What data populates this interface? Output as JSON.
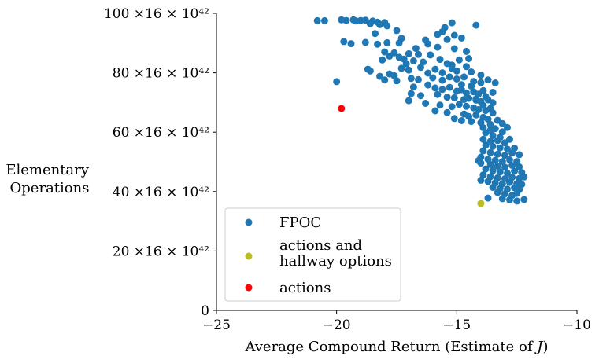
{
  "chart_data": {
    "type": "scatter",
    "xlabel": "Average Compound Return (Estimate of J)",
    "ylabel_lines": [
      "Elementary",
      "Operations"
    ],
    "xlim": [
      -25,
      -10
    ],
    "ylim": [
      0,
      100
    ],
    "x_ticks": [
      -25,
      -20,
      -15,
      -10
    ],
    "x_tick_labels": [
      "−25",
      "−20",
      "−15",
      "−10"
    ],
    "y_ticks": [
      0,
      20,
      40,
      60,
      80,
      100
    ],
    "y_tick_labels": [
      "0",
      "20 ×16 × 10⁴²",
      "40 ×16 × 10⁴²",
      "60 ×16 × 10⁴²",
      "80 ×16 × 10⁴²",
      "100 ×16 × 10⁴²"
    ],
    "grid": false,
    "legend_position": "lower-left",
    "series": [
      {
        "name": "FPOC",
        "color": "#1f77b4",
        "points": [
          [
            -20.8,
            97.5
          ],
          [
            -20.5,
            97.5
          ],
          [
            -19.8,
            97.8
          ],
          [
            -19.6,
            97.6
          ],
          [
            -19.3,
            97.8
          ],
          [
            -19.0,
            97.6
          ],
          [
            -18.8,
            97.7
          ],
          [
            -18.5,
            97.4
          ],
          [
            -18.3,
            97.0
          ],
          [
            -18.0,
            96.9
          ],
          [
            -18.6,
            96.5
          ],
          [
            -18.2,
            96.2
          ],
          [
            -17.9,
            95.8
          ],
          [
            -14.2,
            96.0
          ],
          [
            -15.2,
            96.8
          ],
          [
            -17.5,
            94.2
          ],
          [
            -19.7,
            90.5
          ],
          [
            -19.4,
            89.8
          ],
          [
            -18.8,
            90.2
          ],
          [
            -18.3,
            89.6
          ],
          [
            -17.9,
            90.1
          ],
          [
            -17.4,
            90.0
          ],
          [
            -15.6,
            93.8
          ],
          [
            -15.8,
            92.9
          ],
          [
            -15.1,
            92.6
          ],
          [
            -14.8,
            91.7
          ],
          [
            -15.4,
            91.2
          ],
          [
            -16.2,
            89.7
          ],
          [
            -15.8,
            88.6
          ],
          [
            -15.1,
            88.1
          ],
          [
            -14.6,
            87.2
          ],
          [
            -18.0,
            87.0
          ],
          [
            -17.6,
            86.7
          ],
          [
            -17.0,
            86.4
          ],
          [
            -16.6,
            86.2
          ],
          [
            -16.1,
            86.0
          ],
          [
            -17.8,
            85.6
          ],
          [
            -17.4,
            85.2
          ],
          [
            -17.2,
            84.6
          ],
          [
            -18.1,
            84.3
          ],
          [
            -16.8,
            84.0
          ],
          [
            -16.4,
            83.6
          ],
          [
            -18.7,
            81.2
          ],
          [
            -18.6,
            80.6
          ],
          [
            -17.3,
            81.5
          ],
          [
            -17.0,
            80.9
          ],
          [
            -16.5,
            81.8
          ],
          [
            -15.9,
            81.2
          ],
          [
            -15.4,
            83.1
          ],
          [
            -15.2,
            82.6
          ],
          [
            -14.9,
            84.3
          ],
          [
            -15.0,
            80.6
          ],
          [
            -14.4,
            80.3
          ],
          [
            -14.0,
            79.2
          ],
          [
            -16.2,
            79.9
          ],
          [
            -17.8,
            79.6
          ],
          [
            -18.2,
            78.8
          ],
          [
            -17.6,
            79.0
          ],
          [
            -18.0,
            77.6
          ],
          [
            -17.5,
            77.3
          ],
          [
            -16.9,
            78.1
          ],
          [
            -16.6,
            77.7
          ],
          [
            -16.0,
            78.3
          ],
          [
            -15.6,
            77.5
          ],
          [
            -15.3,
            78.6
          ],
          [
            -15.0,
            77.9
          ],
          [
            -14.7,
            78.6
          ],
          [
            -14.3,
            77.1
          ],
          [
            -14.0,
            76.7
          ],
          [
            -13.9,
            74.0
          ],
          [
            -13.7,
            77.6
          ],
          [
            -16.8,
            75.2
          ],
          [
            -16.2,
            75.9
          ],
          [
            -15.9,
            74.9
          ],
          [
            -15.6,
            74.4
          ],
          [
            -15.3,
            75.1
          ],
          [
            -15.0,
            73.8
          ],
          [
            -14.8,
            74.3
          ],
          [
            -14.6,
            73.2
          ],
          [
            -14.3,
            73.6
          ],
          [
            -14.1,
            72.8
          ],
          [
            -13.8,
            72.0
          ],
          [
            -13.5,
            73.4
          ],
          [
            -16.9,
            73.0
          ],
          [
            -16.5,
            72.3
          ],
          [
            -15.8,
            72.7
          ],
          [
            -15.4,
            71.8
          ],
          [
            -15.1,
            71.6
          ],
          [
            -14.7,
            71.0
          ],
          [
            -14.5,
            71.4
          ],
          [
            -14.2,
            70.8
          ],
          [
            -14.0,
            70.3
          ],
          [
            -13.7,
            70.9
          ],
          [
            -13.5,
            69.9
          ],
          [
            -17.0,
            70.6
          ],
          [
            -16.3,
            69.7
          ],
          [
            -15.7,
            69.1
          ],
          [
            -15.2,
            68.6
          ],
          [
            -14.9,
            69.4
          ],
          [
            -14.6,
            68.7
          ],
          [
            -14.3,
            68.2
          ],
          [
            -14.1,
            67.6
          ],
          [
            -13.8,
            67.3
          ],
          [
            -13.6,
            68.0
          ],
          [
            -15.9,
            67.2
          ],
          [
            -15.4,
            66.6
          ],
          [
            -14.7,
            66.1
          ],
          [
            -14.5,
            65.3
          ],
          [
            -14.2,
            65.8
          ],
          [
            -13.9,
            65.0
          ],
          [
            -13.7,
            64.4
          ],
          [
            -15.1,
            64.6
          ],
          [
            -14.8,
            63.9
          ],
          [
            -14.4,
            63.6
          ],
          [
            -14.0,
            63.2
          ],
          [
            -13.6,
            62.6
          ],
          [
            -13.3,
            64.0
          ],
          [
            -13.1,
            62.9
          ],
          [
            -13.9,
            61.5
          ],
          [
            -13.6,
            60.7
          ],
          [
            -13.4,
            61.2
          ],
          [
            -13.1,
            60.1
          ],
          [
            -12.9,
            61.6
          ],
          [
            -13.8,
            59.8
          ],
          [
            -13.5,
            58.9
          ],
          [
            -13.2,
            58.2
          ],
          [
            -13.9,
            57.6
          ],
          [
            -13.6,
            56.9
          ],
          [
            -13.3,
            57.2
          ],
          [
            -13.0,
            56.4
          ],
          [
            -12.8,
            57.6
          ],
          [
            -13.8,
            55.6
          ],
          [
            -13.5,
            55.2
          ],
          [
            -13.2,
            54.7
          ],
          [
            -12.9,
            54.3
          ],
          [
            -12.6,
            54.6
          ],
          [
            -13.9,
            53.7
          ],
          [
            -13.6,
            53.1
          ],
          [
            -13.3,
            52.6
          ],
          [
            -13.0,
            52.2
          ],
          [
            -12.7,
            53.0
          ],
          [
            -12.4,
            52.4
          ],
          [
            -14.0,
            51.6
          ],
          [
            -13.7,
            50.9
          ],
          [
            -13.4,
            50.5
          ],
          [
            -13.1,
            50.1
          ],
          [
            -12.8,
            50.7
          ],
          [
            -12.5,
            50.1
          ],
          [
            -14.0,
            49.6
          ],
          [
            -13.6,
            49.1
          ],
          [
            -13.3,
            48.6
          ],
          [
            -13.0,
            48.2
          ],
          [
            -12.7,
            48.8
          ],
          [
            -12.4,
            48.3
          ],
          [
            -13.8,
            47.6
          ],
          [
            -13.5,
            47.0
          ],
          [
            -13.2,
            46.6
          ],
          [
            -12.9,
            46.2
          ],
          [
            -12.6,
            46.9
          ],
          [
            -12.3,
            46.4
          ],
          [
            -13.9,
            45.6
          ],
          [
            -13.6,
            45.0
          ],
          [
            -13.3,
            44.6
          ],
          [
            -13.0,
            44.3
          ],
          [
            -12.7,
            44.8
          ],
          [
            -12.4,
            44.4
          ],
          [
            -12.2,
            44.9
          ],
          [
            -13.7,
            43.4
          ],
          [
            -13.4,
            42.9
          ],
          [
            -13.1,
            42.6
          ],
          [
            -12.8,
            43.1
          ],
          [
            -12.5,
            42.7
          ],
          [
            -12.3,
            42.4
          ],
          [
            -13.5,
            41.4
          ],
          [
            -13.2,
            41.0
          ],
          [
            -12.9,
            40.8
          ],
          [
            -12.6,
            41.3
          ],
          [
            -12.4,
            40.7
          ],
          [
            -13.3,
            39.7
          ],
          [
            -13.0,
            39.2
          ],
          [
            -12.7,
            38.7
          ],
          [
            -12.5,
            39.4
          ],
          [
            -13.1,
            37.6
          ],
          [
            -12.8,
            37.2
          ],
          [
            -12.5,
            36.8
          ],
          [
            -12.2,
            37.3
          ],
          [
            -14.0,
            43.8
          ],
          [
            -13.7,
            37.8
          ],
          [
            -15.2,
            81.5
          ],
          [
            -14.6,
            82.1
          ],
          [
            -16.7,
            88.2
          ],
          [
            -17.3,
            91.6
          ],
          [
            -18.4,
            93.2
          ],
          [
            -19.2,
            97.4
          ],
          [
            -20.0,
            77.0
          ],
          [
            -14.1,
            50.4
          ],
          [
            -14.2,
            71.2
          ],
          [
            -14.4,
            75.5
          ],
          [
            -13.4,
            76.6
          ],
          [
            -15.7,
            84.5
          ],
          [
            -16.3,
            91.0
          ],
          [
            -15.5,
            95.2
          ],
          [
            -17.1,
            83.0
          ],
          [
            -15.6,
            80.0
          ],
          [
            -14.8,
            76.0
          ],
          [
            -13.5,
            66.5
          ],
          [
            -13.9,
            69.0
          ],
          [
            -14.5,
            84.8
          ]
        ]
      },
      {
        "name": "actions and hallway options",
        "legend_lines": [
          "actions and",
          "hallway options"
        ],
        "color": "#bcbd22",
        "points": [
          [
            -14.0,
            36.0
          ]
        ]
      },
      {
        "name": "actions",
        "color": "#ff0000",
        "points": [
          [
            -19.8,
            68.0
          ]
        ]
      }
    ]
  }
}
